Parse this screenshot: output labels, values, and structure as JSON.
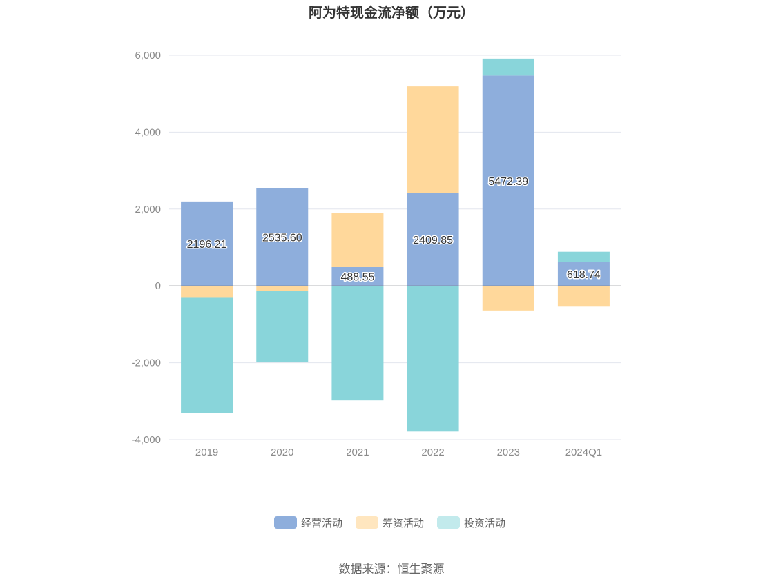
{
  "chart_data": {
    "type": "bar",
    "stacked": true,
    "title": "阿为特现金流净额（万元）",
    "categories": [
      "2019",
      "2020",
      "2021",
      "2022",
      "2023",
      "2024Q1"
    ],
    "series": [
      {
        "name": "经营活动",
        "color": "#8eaedc",
        "values": [
          2196.21,
          2535.6,
          488.55,
          2409.85,
          5472.39,
          618.74
        ],
        "labels": [
          "2196.21",
          "2535.60",
          "488.55",
          "2409.85",
          "5472.39",
          "618.74"
        ]
      },
      {
        "name": "筹资活动",
        "color": "#ffd89b",
        "values": [
          -310,
          -130,
          1400,
          2780,
          -640,
          -540
        ]
      },
      {
        "name": "投资活动",
        "color": "#89d5da",
        "values": [
          -2990,
          -1860,
          -2980,
          -3790,
          440,
          270
        ]
      }
    ],
    "legend_colors": [
      "#8eaedc",
      "#ffe6bf",
      "#c2eaec"
    ],
    "yticks": [
      "6,000",
      "4,000",
      "2,000",
      "0",
      "-2,000",
      "-4,000"
    ],
    "ytick_values": [
      6000,
      4000,
      2000,
      0,
      -2000,
      -4000
    ],
    "ylim": [
      -4000,
      6000
    ],
    "grid": true,
    "legend_position": "bottom-center",
    "xlabel": "",
    "ylabel": ""
  },
  "source": "数据来源：恒生聚源"
}
